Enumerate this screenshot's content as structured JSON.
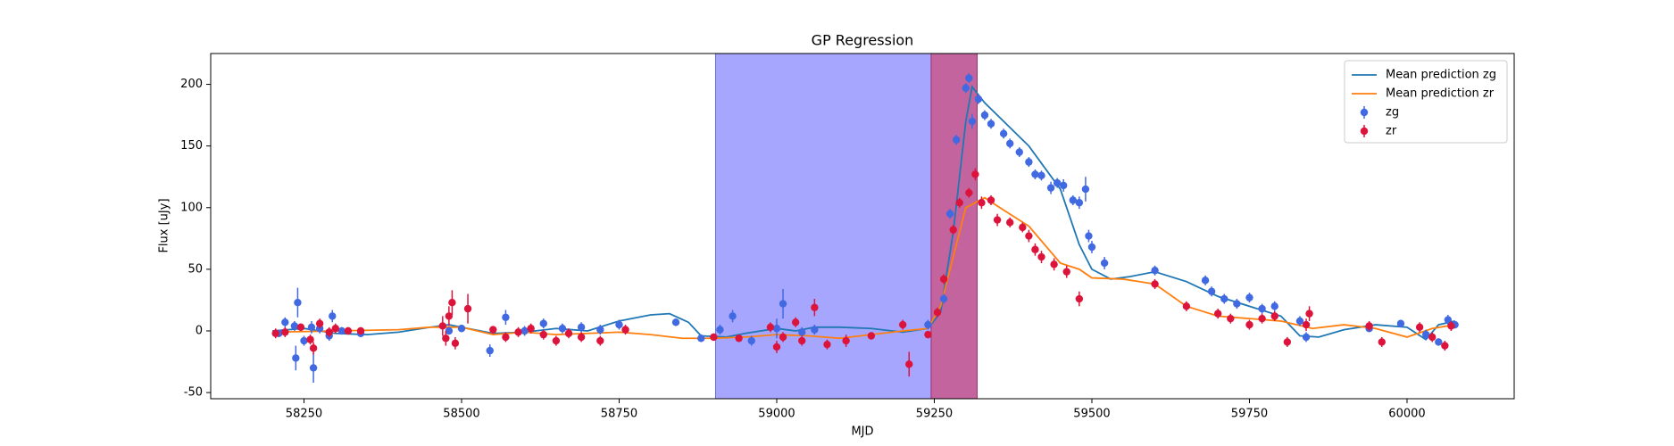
{
  "chart_data": {
    "type": "scatter",
    "title": "GP Regression",
    "x_label": "MJD",
    "y_label": "Flux [uJy]",
    "xlim": [
      58102,
      60170
    ],
    "ylim": [
      -55,
      225
    ],
    "xticks": [
      58250,
      58500,
      58750,
      59000,
      59250,
      59500,
      59750,
      60000
    ],
    "yticks": [
      -50,
      0,
      50,
      100,
      150,
      200
    ],
    "legend": "upper right",
    "spans": [
      {
        "x": [
          58903,
          59245
        ],
        "color": "#a6a6ff",
        "edge": "#6b6bd8"
      },
      {
        "x": [
          59245,
          59318
        ],
        "color": "#c3649e",
        "edge": "#a0306e"
      }
    ],
    "series": [
      {
        "name": "Mean prediction zg",
        "kind": "line",
        "color": "#1f77b4",
        "x": [
          58200,
          58250,
          58300,
          58350,
          58400,
          58450,
          58480,
          58500,
          58550,
          58600,
          58650,
          58700,
          58750,
          58800,
          58830,
          58860,
          58880,
          58920,
          58950,
          59000,
          59030,
          59060,
          59100,
          59150,
          59200,
          59240,
          59260,
          59280,
          59300,
          59310,
          59330,
          59360,
          59400,
          59450,
          59480,
          59500,
          59530,
          59560,
          59600,
          59650,
          59700,
          59750,
          59800,
          59830,
          59860,
          59900,
          59950,
          60000,
          60030,
          60050,
          60076
        ],
        "values": [
          0,
          2,
          -2,
          -3,
          -1,
          3,
          5,
          3,
          -2,
          -1,
          2,
          0,
          8,
          13,
          14,
          7,
          -4,
          -5,
          -2,
          2,
          0,
          3,
          3,
          2,
          -1,
          2,
          15,
          80,
          170,
          198,
          185,
          170,
          150,
          115,
          70,
          50,
          42,
          44,
          48,
          40,
          28,
          20,
          12,
          -4,
          -5,
          1,
          5,
          3,
          -7,
          5,
          8
        ]
      },
      {
        "name": "Mean prediction zr",
        "kind": "line",
        "color": "#ff7f0e",
        "x": [
          58200,
          58300,
          58400,
          58450,
          58500,
          58550,
          58600,
          58650,
          58700,
          58750,
          58800,
          58850,
          58900,
          58950,
          59000,
          59050,
          59100,
          59150,
          59200,
          59240,
          59260,
          59280,
          59300,
          59330,
          59360,
          59400,
          59450,
          59480,
          59500,
          59550,
          59600,
          59650,
          59700,
          59750,
          59800,
          59850,
          59900,
          59950,
          60000,
          60040,
          60076
        ],
        "values": [
          -1,
          0,
          1,
          3,
          3,
          -3,
          -1,
          -3,
          -2,
          -1,
          -3,
          -6,
          -6,
          -5,
          -3,
          -4,
          -6,
          -3,
          0,
          2,
          20,
          60,
          100,
          108,
          98,
          85,
          55,
          50,
          43,
          42,
          38,
          20,
          12,
          10,
          8,
          2,
          5,
          2,
          -5,
          2,
          5
        ]
      },
      {
        "name": "zg",
        "kind": "errorbar",
        "color": "#4169e1",
        "x": [
          58210,
          58220,
          58235,
          58237,
          58240,
          58250,
          58262,
          58265,
          58275,
          58290,
          58295,
          58310,
          58340,
          58480,
          58500,
          58545,
          58570,
          58600,
          58630,
          58660,
          58690,
          58720,
          58750,
          58840,
          58880,
          58910,
          58930,
          58960,
          59000,
          59010,
          59040,
          59060,
          59240,
          59265,
          59275,
          59285,
          59300,
          59305,
          59310,
          59320,
          59330,
          59340,
          59360,
          59370,
          59385,
          59400,
          59410,
          59420,
          59435,
          59445,
          59455,
          59470,
          59480,
          59490,
          59495,
          59500,
          59520,
          59600,
          59680,
          59690,
          59710,
          59730,
          59750,
          59770,
          59790,
          59830,
          59840,
          59940,
          59990,
          60030,
          60050,
          60065,
          60076
        ],
        "values": [
          -2,
          7,
          4,
          -22,
          23,
          -8,
          3,
          -30,
          2,
          -4,
          12,
          0,
          -2,
          0,
          2,
          -16,
          11,
          0,
          6,
          2,
          3,
          1,
          5,
          7,
          -6,
          1,
          12,
          -8,
          2,
          22,
          -1,
          1,
          5,
          26,
          95,
          155,
          197,
          205,
          170,
          188,
          175,
          168,
          160,
          152,
          145,
          137,
          127,
          126,
          116,
          120,
          118,
          106,
          104,
          115,
          77,
          68,
          55,
          49,
          41,
          32,
          26,
          22,
          27,
          18,
          20,
          8,
          -5,
          2,
          6,
          -3,
          -9,
          9,
          5
        ],
        "errors": [
          3,
          4,
          4,
          10,
          12,
          4,
          5,
          12,
          4,
          4,
          5,
          3,
          3,
          3,
          3,
          5,
          6,
          4,
          4,
          4,
          4,
          4,
          4,
          3,
          3,
          4,
          5,
          4,
          8,
          12,
          4,
          4,
          4,
          4,
          4,
          4,
          4,
          4,
          6,
          4,
          4,
          4,
          4,
          4,
          4,
          4,
          4,
          4,
          5,
          4,
          5,
          4,
          5,
          10,
          5,
          5,
          5,
          4,
          4,
          4,
          4,
          4,
          4,
          4,
          4,
          4,
          4,
          3,
          3,
          4,
          3,
          4,
          3
        ]
      },
      {
        "name": "zr",
        "kind": "errorbar",
        "color": "#dc143c",
        "x": [
          58205,
          58220,
          58245,
          58260,
          58265,
          58275,
          58290,
          58300,
          58320,
          58340,
          58470,
          58475,
          58480,
          58485,
          58490,
          58510,
          58550,
          58570,
          58590,
          58610,
          58630,
          58650,
          58670,
          58690,
          58720,
          58760,
          58900,
          58940,
          58990,
          59000,
          59010,
          59030,
          59040,
          59060,
          59080,
          59110,
          59150,
          59200,
          59210,
          59240,
          59255,
          59265,
          59280,
          59290,
          59305,
          59315,
          59325,
          59340,
          59350,
          59370,
          59390,
          59400,
          59410,
          59420,
          59440,
          59460,
          59480,
          59600,
          59650,
          59700,
          59720,
          59750,
          59770,
          59790,
          59810,
          59840,
          59845,
          59940,
          59960,
          60020,
          60040,
          60060,
          60070
        ],
        "values": [
          -2,
          -1,
          3,
          -7,
          -14,
          6,
          -1,
          2,
          0,
          0,
          4,
          -6,
          12,
          23,
          -10,
          18,
          1,
          -5,
          -1,
          2,
          -3,
          -8,
          -2,
          -5,
          -8,
          1,
          -5,
          -6,
          3,
          -13,
          -5,
          7,
          -8,
          19,
          -11,
          -8,
          -4,
          5,
          -27,
          -3,
          15,
          42,
          82,
          104,
          112,
          127,
          104,
          106,
          90,
          88,
          84,
          77,
          66,
          60,
          54,
          48,
          26,
          38,
          20,
          14,
          10,
          5,
          10,
          12,
          -9,
          5,
          14,
          4,
          -9,
          3,
          -5,
          -12,
          4
        ],
        "errors": [
          4,
          4,
          3,
          4,
          5,
          4,
          4,
          4,
          3,
          3,
          8,
          6,
          8,
          10,
          5,
          12,
          3,
          4,
          4,
          4,
          4,
          4,
          4,
          4,
          4,
          4,
          3,
          3,
          4,
          5,
          4,
          4,
          4,
          7,
          4,
          5,
          3,
          4,
          10,
          3,
          4,
          4,
          4,
          4,
          4,
          5,
          5,
          4,
          5,
          4,
          4,
          5,
          5,
          5,
          5,
          5,
          6,
          4,
          4,
          4,
          4,
          4,
          4,
          4,
          4,
          5,
          6,
          4,
          4,
          4,
          4,
          4,
          4
        ]
      }
    ]
  }
}
